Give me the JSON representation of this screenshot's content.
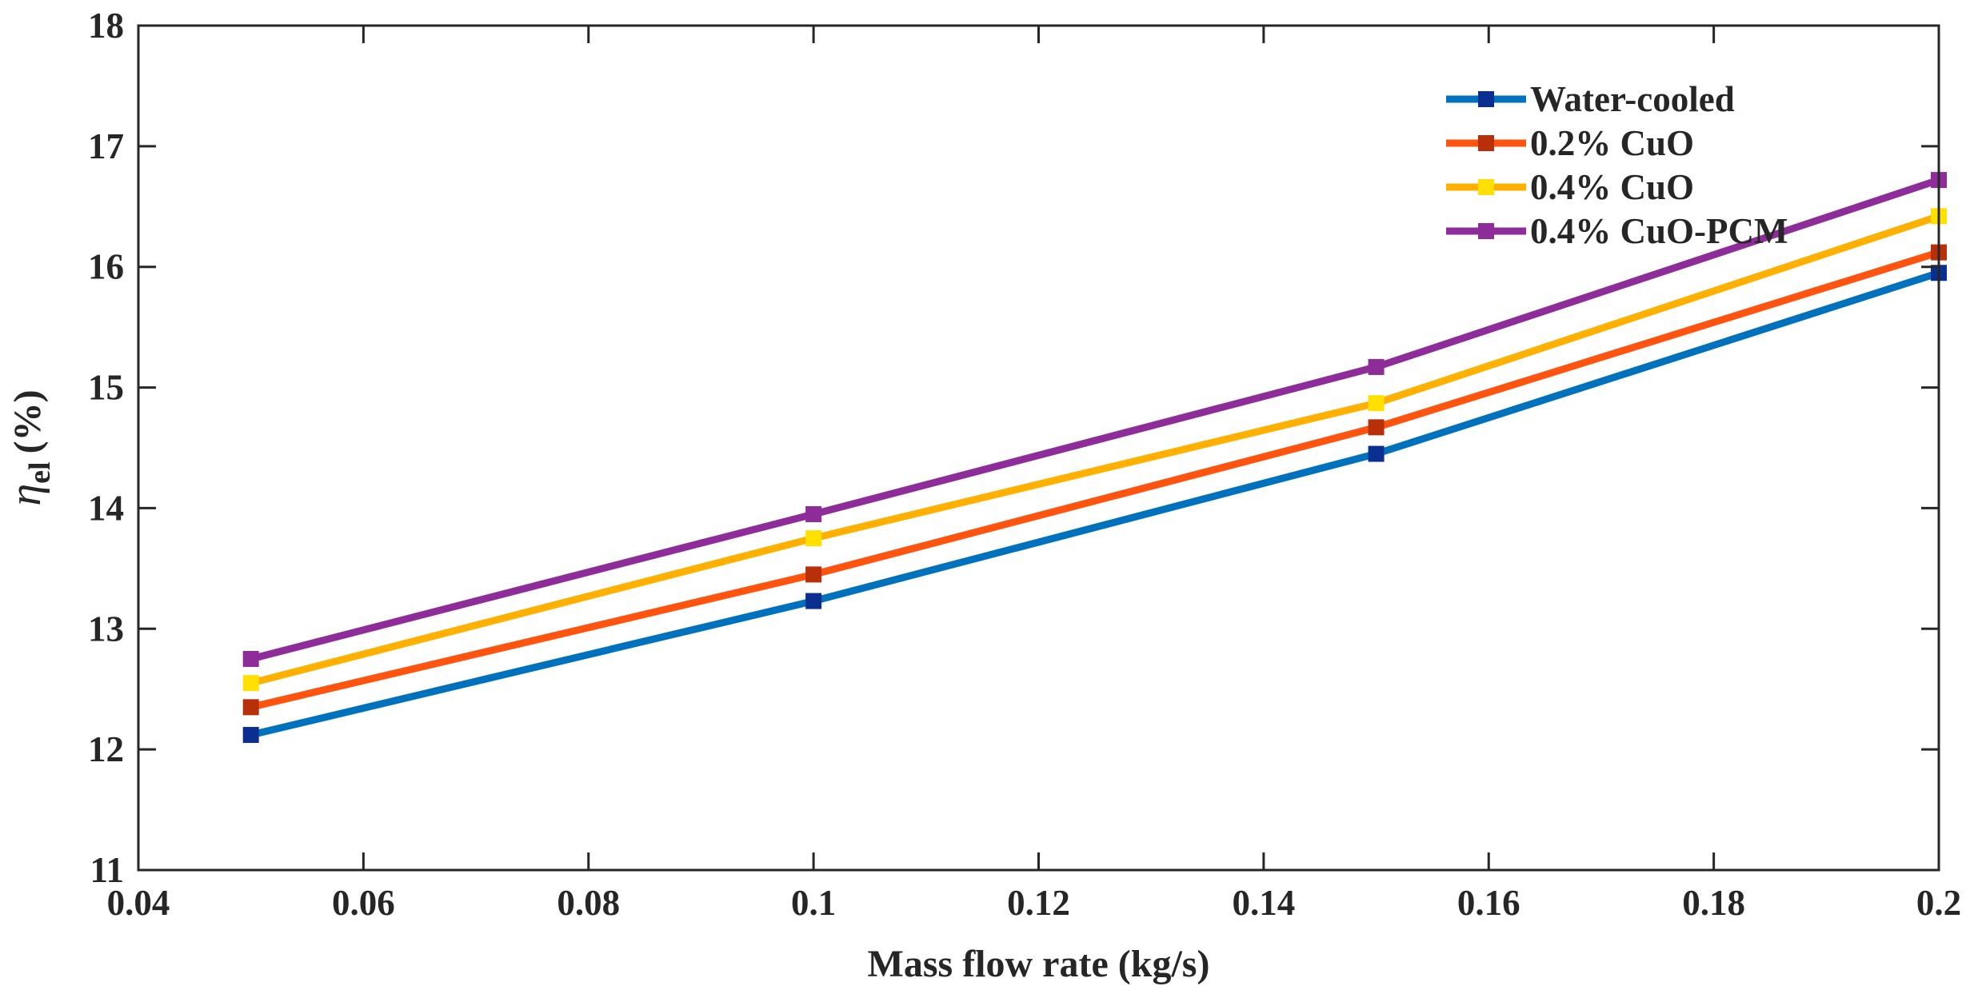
{
  "chart_data": {
    "type": "line",
    "title": "",
    "xlabel": "Mass flow rate (kg/s)",
    "ylabel": {
      "symbol": "η",
      "subscript": "el",
      "unit": "(%)"
    },
    "xlim": [
      0.04,
      0.2
    ],
    "ylim": [
      11,
      18
    ],
    "xticks": [
      0.04,
      0.06,
      0.08,
      0.1,
      0.12,
      0.14,
      0.16,
      0.18,
      0.2
    ],
    "xtick_labels": [
      "0.04",
      "0.06",
      "0.08",
      "0.1",
      "0.12",
      "0.14",
      "0.16",
      "0.18",
      "0.2"
    ],
    "yticks": [
      11,
      12,
      13,
      14,
      15,
      16,
      17,
      18
    ],
    "ytick_labels": [
      "11",
      "12",
      "13",
      "14",
      "15",
      "16",
      "17",
      "18"
    ],
    "grid": false,
    "legend_position": "top-right",
    "x": [
      0.05,
      0.1,
      0.15,
      0.2
    ],
    "series": [
      {
        "name": "Water-cooled",
        "values": [
          12.12,
          13.23,
          14.45,
          15.95
        ],
        "line_color": "#0072BD",
        "marker_color": "#0B2F91"
      },
      {
        "name": "0.2% CuO",
        "values": [
          12.35,
          13.45,
          14.67,
          16.12
        ],
        "line_color": "#FF5310",
        "marker_color": "#B8300A"
      },
      {
        "name": "0.4% CuO",
        "values": [
          12.55,
          13.75,
          14.87,
          16.42
        ],
        "line_color": "#FFB000",
        "marker_color": "#FFE000"
      },
      {
        "name": "0.4% CuO-PCM",
        "values": [
          12.75,
          13.95,
          15.17,
          16.72
        ],
        "line_color": "#8E2C99",
        "marker_color": "#8E2C99"
      }
    ]
  }
}
